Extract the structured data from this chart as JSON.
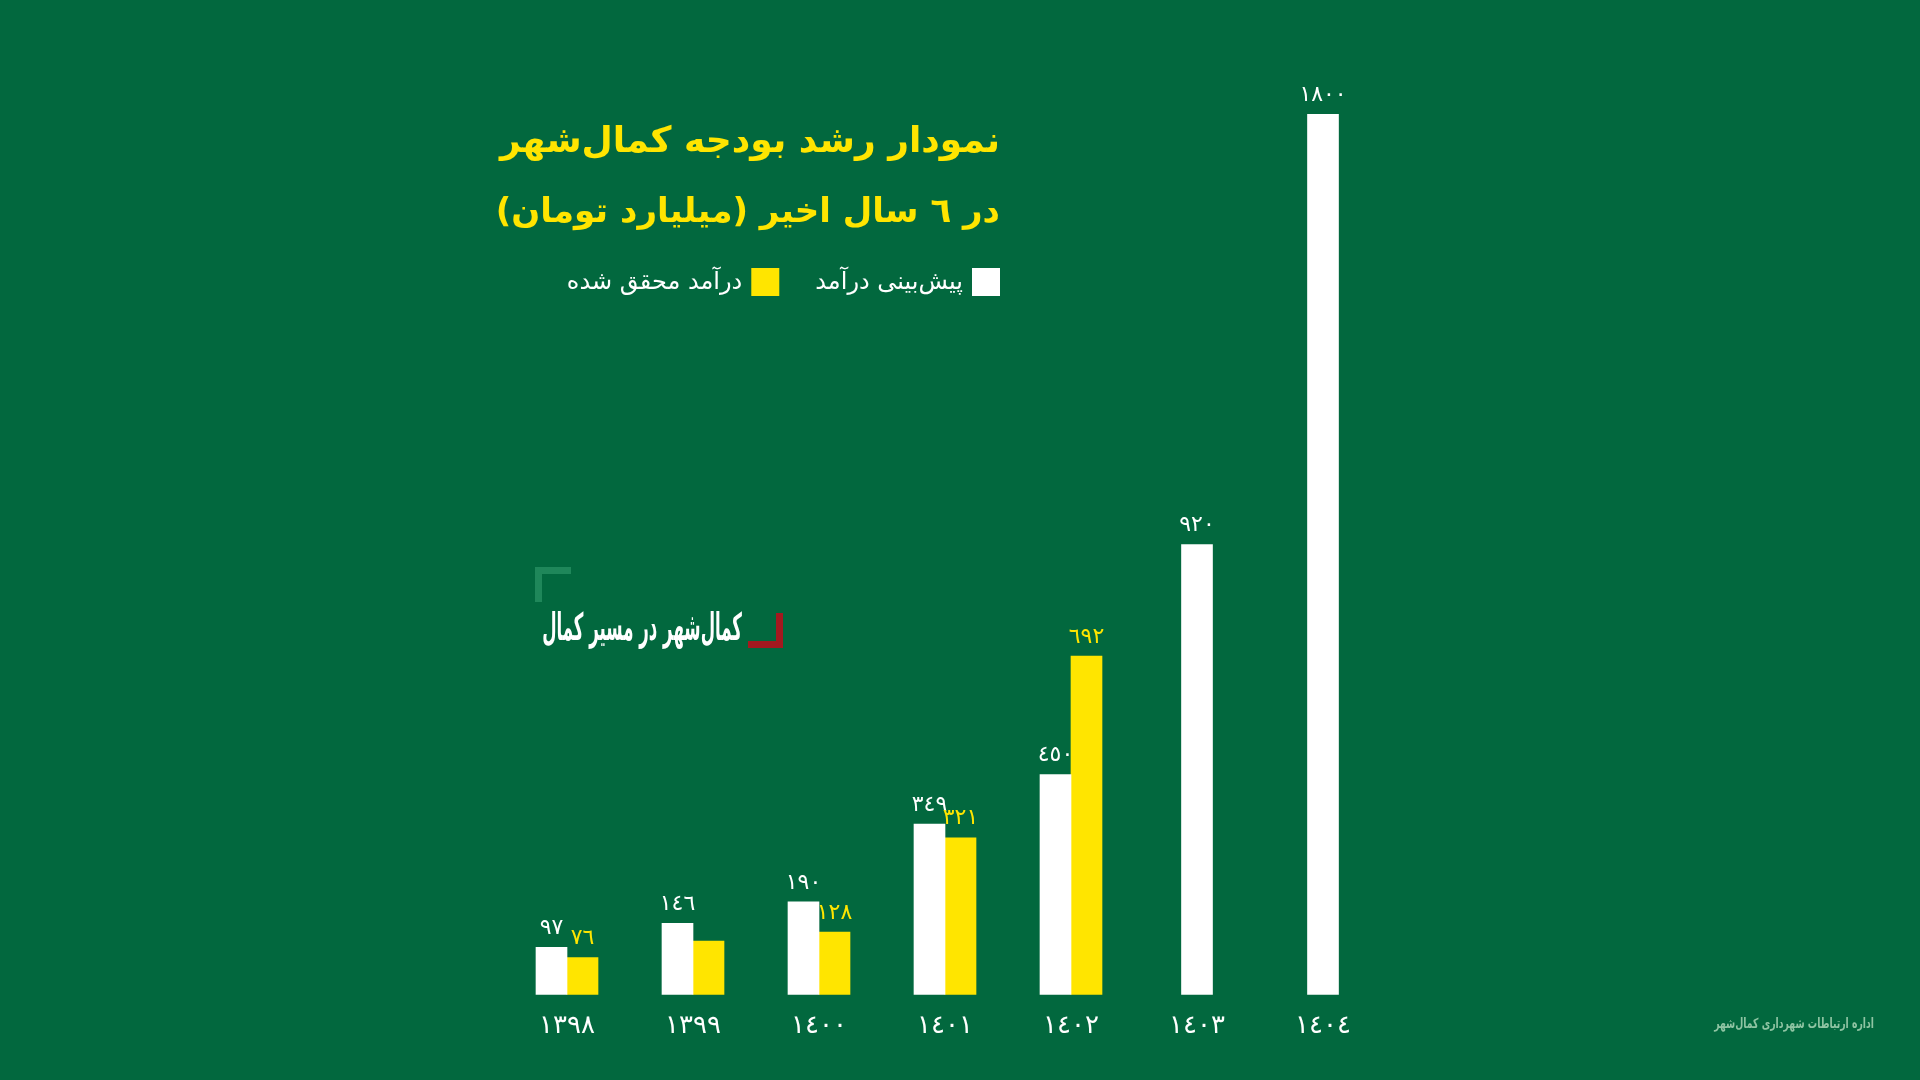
{
  "chart_data": {
    "type": "bar",
    "title": "نمودار رشد بودجه کمال‌شهر",
    "subtitle": "در ٦ سال اخیر (میلیارد تومان)",
    "categories": [
      "١٣٩٨",
      "١٣٩٩",
      "١٤٠٠",
      "١٤٠١",
      "١٤٠٢",
      "١٤٠٣",
      "١٤٠٤"
    ],
    "series": [
      {
        "name": "پیش‌بینی درآمد",
        "color": "#ffffff",
        "values": [
          97,
          146,
          190,
          349,
          450,
          920,
          1800
        ],
        "value_labels": [
          "٩٧",
          "١٤٦",
          "١٩٠",
          "٣٤٩",
          "٤٥٠",
          "٩٢٠",
          "١٨٠٠"
        ]
      },
      {
        "name": "درآمد محقق شده",
        "color": "#ffe500",
        "values": [
          76,
          110,
          128,
          321,
          692,
          null,
          null
        ],
        "value_labels": [
          "٧٦",
          null,
          "١٢٨",
          "٣٢١",
          "٦٩٢",
          null,
          null
        ]
      }
    ],
    "legend": "top left",
    "annotations": [
      "کمال‌شهر در مسیر کمال",
      "اداره ارتباطات شهرداری کمال‌شهر"
    ]
  }
}
